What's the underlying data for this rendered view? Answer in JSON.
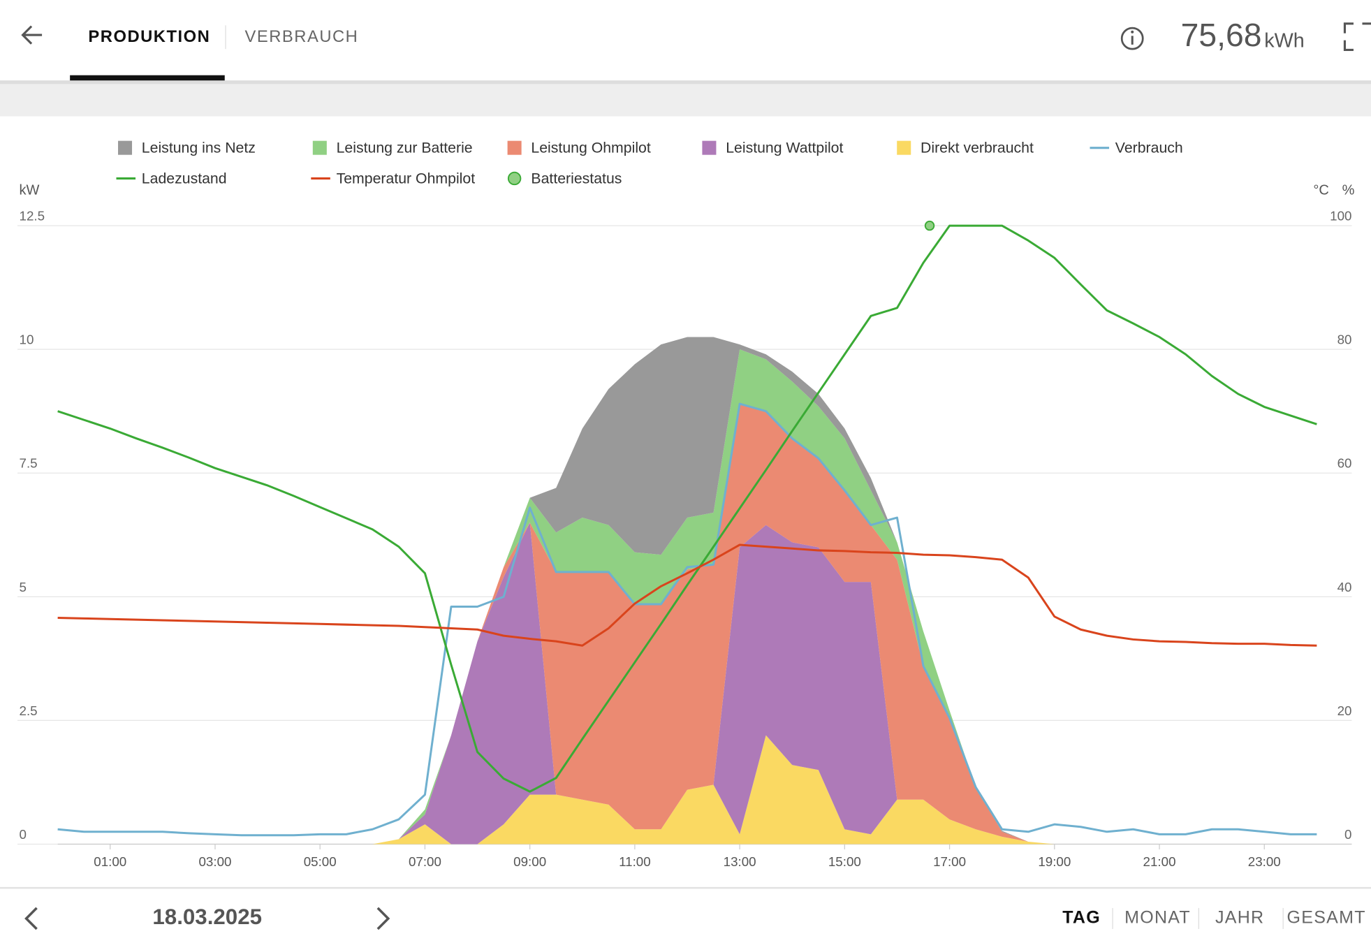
{
  "header": {
    "tabs": [
      "PRODUKTION",
      "VERBRAUCH"
    ],
    "total": "75,68",
    "unit": "kWh"
  },
  "chart_data": {
    "type": "area",
    "y_label": "kW",
    "y2_labels": [
      "°C",
      "%"
    ],
    "x": [
      0,
      0.5,
      1,
      1.5,
      2,
      2.5,
      3,
      3.5,
      4,
      4.5,
      5,
      5.5,
      6,
      6.5,
      7,
      7.5,
      8,
      8.5,
      9,
      9.5,
      10,
      10.5,
      11,
      11.5,
      12,
      12.5,
      13,
      13.5,
      14,
      14.5,
      15,
      15.5,
      16,
      16.5,
      17,
      17.5,
      18,
      18.5,
      19,
      19.5,
      20,
      20.5,
      21,
      21.5,
      22,
      22.5,
      23,
      23.5,
      24
    ],
    "xlim": [
      0,
      24
    ],
    "xticks": [
      {
        "value": 1,
        "label": "01:00"
      },
      {
        "value": 3,
        "label": "03:00"
      },
      {
        "value": 5,
        "label": "05:00"
      },
      {
        "value": 7,
        "label": "07:00"
      },
      {
        "value": 9,
        "label": "09:00"
      },
      {
        "value": 11,
        "label": "11:00"
      },
      {
        "value": 13,
        "label": "13:00"
      },
      {
        "value": 15,
        "label": "15:00"
      },
      {
        "value": 17,
        "label": "17:00"
      },
      {
        "value": 19,
        "label": "19:00"
      },
      {
        "value": 21,
        "label": "21:00"
      },
      {
        "value": 23,
        "label": "23:00"
      }
    ],
    "ylim": [
      0,
      12.5
    ],
    "yticks": [
      0,
      2.5,
      5,
      7.5,
      10,
      12.5
    ],
    "y2lim": [
      0,
      100
    ],
    "y2ticks": [
      0,
      20,
      40,
      60,
      80,
      100
    ],
    "grid": true,
    "series": [
      {
        "name": "Leistung ins Netz",
        "color": "#999999",
        "kind": "stack",
        "values": [
          0,
          0,
          0,
          0,
          0,
          0,
          0,
          0,
          0,
          0,
          0,
          0,
          0,
          0,
          0,
          0,
          0,
          0,
          0,
          0.9,
          1.8,
          2.75,
          3.8,
          4.25,
          3.65,
          3.55,
          0.1,
          0.1,
          0.2,
          0.25,
          0.2,
          0.25,
          0,
          0,
          0,
          0,
          0.02,
          0,
          0,
          0,
          0,
          0,
          0,
          0,
          0,
          0,
          0,
          0,
          0
        ]
      },
      {
        "name": "Leistung zur Batterie",
        "color": "#90d083",
        "kind": "stack",
        "values": [
          0,
          0,
          0,
          0,
          0,
          0,
          0,
          0,
          0,
          0,
          0,
          0,
          0,
          0,
          0.1,
          0,
          0,
          0,
          0.5,
          0.8,
          1.1,
          0.95,
          1.05,
          1.0,
          1.05,
          1.05,
          1.1,
          1.05,
          1.15,
          1.05,
          1.05,
          0.7,
          0.35,
          0.7,
          0.15,
          0,
          0,
          0,
          0,
          0,
          0,
          0,
          0,
          0,
          0,
          0,
          0,
          0,
          0
        ]
      },
      {
        "name": "Leistung Ohmpilot",
        "color": "#eb8a72",
        "kind": "stack",
        "values": [
          0,
          0,
          0,
          0,
          0,
          0,
          0,
          0,
          0,
          0,
          0,
          0,
          0,
          0,
          0,
          0,
          0,
          0.2,
          0,
          4.5,
          4.6,
          4.7,
          4.55,
          4.55,
          4.45,
          4.45,
          2.9,
          2.3,
          2.1,
          1.8,
          1.85,
          1.15,
          4.85,
          2.7,
          2.05,
          0.85,
          0.1,
          0,
          0,
          0,
          0,
          0,
          0,
          0,
          0,
          0,
          0,
          0,
          0
        ]
      },
      {
        "name": "Leistung Wattpilot",
        "color": "#ae7ab8",
        "kind": "stack",
        "values": [
          0,
          0,
          0,
          0,
          0,
          0,
          0,
          0,
          0,
          0,
          0,
          0,
          0,
          0,
          0.2,
          2.2,
          4.1,
          5.0,
          5.5,
          0,
          0,
          0,
          0,
          0,
          0,
          0,
          5.8,
          4.25,
          4.5,
          4.5,
          5.0,
          5.1,
          0,
          0,
          0,
          0,
          0,
          0,
          0,
          0,
          0,
          0,
          0,
          0,
          0,
          0,
          0,
          0,
          0
        ]
      },
      {
        "name": "Direkt verbraucht",
        "color": "#fad962",
        "kind": "stack",
        "values": [
          0,
          0,
          0,
          0,
          0,
          0,
          0,
          0,
          0,
          0,
          0,
          0,
          0,
          0.1,
          0.4,
          0,
          0,
          0.4,
          1.0,
          1.0,
          0.9,
          0.8,
          0.3,
          0.3,
          1.1,
          1.2,
          0.2,
          2.2,
          1.6,
          1.5,
          0.3,
          0.2,
          0.9,
          0.9,
          0.5,
          0.3,
          0.15,
          0.05,
          0,
          0,
          0,
          0,
          0,
          0,
          0,
          0,
          0,
          0,
          0
        ]
      },
      {
        "name": "Verbrauch",
        "color": "#6fb0cf",
        "kind": "line",
        "values": [
          0.3,
          0.25,
          0.25,
          0.25,
          0.25,
          0.22,
          0.2,
          0.18,
          0.18,
          0.18,
          0.2,
          0.2,
          0.3,
          0.5,
          1.0,
          4.8,
          4.8,
          5.0,
          6.8,
          5.5,
          5.5,
          5.5,
          4.85,
          4.85,
          5.6,
          5.65,
          8.9,
          8.75,
          8.2,
          7.8,
          7.15,
          6.45,
          6.6,
          3.6,
          2.55,
          1.15,
          0.3,
          0.25,
          0.4,
          0.35,
          0.25,
          0.3,
          0.2,
          0.2,
          0.3,
          0.3,
          0.25,
          0.2,
          0.2
        ]
      },
      {
        "name": "Ladezustand",
        "color": "#3aaa35",
        "kind": "line",
        "axis": "y2",
        "values": [
          70.0,
          68.6,
          67.2,
          65.6,
          64.1,
          62.5,
          60.8,
          59.4,
          58.0,
          56.3,
          54.5,
          52.7,
          50.9,
          48.1,
          43.8,
          29,
          14.9,
          10.6,
          8.5,
          10.7,
          17,
          23.2,
          29.4,
          35.6,
          41.9,
          48.1,
          54.3,
          60.5,
          66.8,
          73,
          79.2,
          85.4,
          86.7,
          94,
          100,
          100,
          100,
          97.6,
          94.8,
          90.5,
          86.3,
          84.2,
          82,
          79.2,
          75.7,
          72.8,
          70.7,
          69.3,
          67.9
        ]
      },
      {
        "name": "Temperatur Ohmpilot",
        "color": "#d9441c",
        "kind": "line",
        "axis": "y2",
        "values": [
          36.6,
          36.5,
          36.4,
          36.3,
          36.2,
          36.1,
          36.0,
          35.9,
          35.8,
          35.7,
          35.6,
          35.5,
          35.4,
          35.3,
          35.1,
          34.9,
          34.7,
          33.7,
          33.2,
          32.8,
          32.1,
          34.9,
          38.9,
          41.7,
          43.8,
          46,
          48.4,
          48.1,
          47.8,
          47.5,
          47.4,
          47.2,
          47.1,
          46.8,
          46.7,
          46.4,
          46,
          43.1,
          36.8,
          34.7,
          33.7,
          33.1,
          32.8,
          32.7,
          32.5,
          32.4,
          32.4,
          32.2,
          32.1
        ]
      },
      {
        "name": "Batteriestatus",
        "color": "#90d083",
        "kind": "point",
        "axis": "y2",
        "x": [
          16.62
        ],
        "values": [
          100
        ]
      }
    ]
  },
  "footer": {
    "date": "18.03.2025",
    "periods": [
      "TAG",
      "MONAT",
      "JAHR",
      "GESAMT"
    ]
  }
}
